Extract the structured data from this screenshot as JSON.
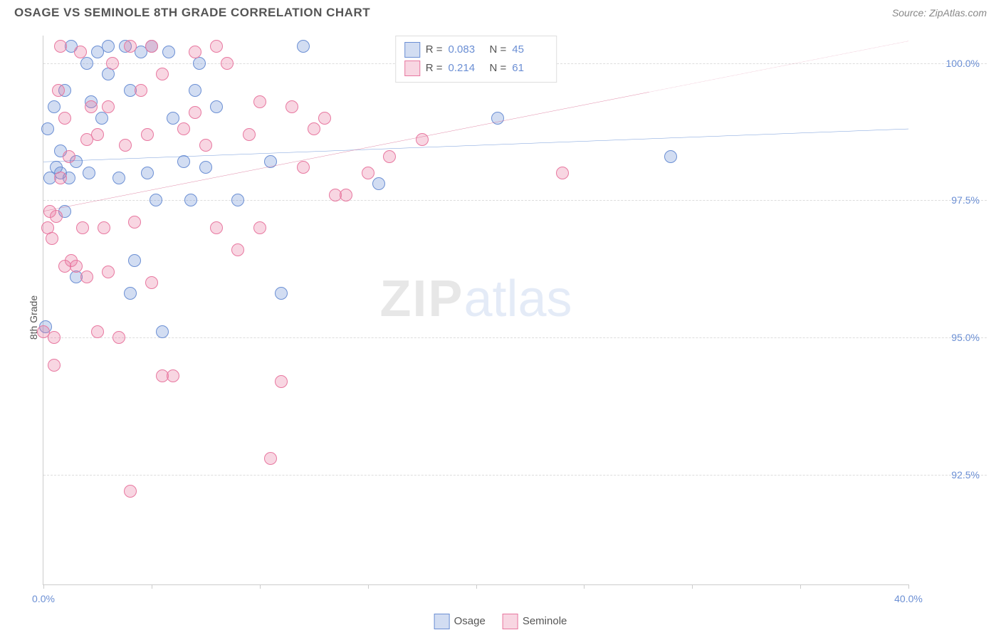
{
  "title": "OSAGE VS SEMINOLE 8TH GRADE CORRELATION CHART",
  "source": "Source: ZipAtlas.com",
  "ylabel": "8th Grade",
  "watermark": {
    "zip": "ZIP",
    "atlas": "atlas"
  },
  "chart": {
    "type": "scatter",
    "background_color": "#ffffff",
    "grid_color": "#dddddd",
    "axis_color": "#cccccc",
    "label_color": "#6b8fd4",
    "title_color": "#555555",
    "title_fontsize": 17,
    "label_fontsize": 14,
    "xlim": [
      0,
      40
    ],
    "ylim": [
      90.5,
      100.5
    ],
    "xticks": [
      0,
      5,
      10,
      15,
      20,
      25,
      30,
      35,
      40
    ],
    "xtick_labels": {
      "0": "0.0%",
      "40": "40.0%"
    },
    "yticks": [
      92.5,
      95.0,
      97.5,
      100.0
    ],
    "ytick_labels": [
      "92.5%",
      "95.0%",
      "97.5%",
      "100.0%"
    ],
    "marker_radius": 9,
    "marker_border_width": 1.5,
    "marker_fill_opacity": 0.35,
    "series": [
      {
        "name": "Osage",
        "color_fill": "rgba(107,143,212,0.30)",
        "color_border": "#6b8fd4",
        "line_color": "#3a6fc9",
        "line_width": 2.5,
        "R": "0.083",
        "N": "45",
        "trend": {
          "x1": 0,
          "y1": 98.2,
          "x2": 40,
          "y2": 98.8,
          "solid_until_x": 40
        },
        "points": [
          [
            0.2,
            98.8
          ],
          [
            0.3,
            97.9
          ],
          [
            0.5,
            99.2
          ],
          [
            0.6,
            98.1
          ],
          [
            0.8,
            98.0
          ],
          [
            0.8,
            98.4
          ],
          [
            1.0,
            97.3
          ],
          [
            1.0,
            99.5
          ],
          [
            1.2,
            97.9
          ],
          [
            1.3,
            100.3
          ],
          [
            1.5,
            98.2
          ],
          [
            1.5,
            96.1
          ],
          [
            2.0,
            100.0
          ],
          [
            2.1,
            98.0
          ],
          [
            2.2,
            99.3
          ],
          [
            2.5,
            100.2
          ],
          [
            2.7,
            99.0
          ],
          [
            3.0,
            99.8
          ],
          [
            3.0,
            100.3
          ],
          [
            3.5,
            97.9
          ],
          [
            3.8,
            100.3
          ],
          [
            4.0,
            99.5
          ],
          [
            4.0,
            95.8
          ],
          [
            4.2,
            96.4
          ],
          [
            4.5,
            100.2
          ],
          [
            4.8,
            98.0
          ],
          [
            5.0,
            100.3
          ],
          [
            5.2,
            97.5
          ],
          [
            5.5,
            95.1
          ],
          [
            5.8,
            100.2
          ],
          [
            6.0,
            99.0
          ],
          [
            6.5,
            98.2
          ],
          [
            6.8,
            97.5
          ],
          [
            7.0,
            99.5
          ],
          [
            7.2,
            100.0
          ],
          [
            7.5,
            98.1
          ],
          [
            8.0,
            99.2
          ],
          [
            9.0,
            97.5
          ],
          [
            10.5,
            98.2
          ],
          [
            11.0,
            95.8
          ],
          [
            12.0,
            100.3
          ],
          [
            15.5,
            97.8
          ],
          [
            21.0,
            99.0
          ],
          [
            29.0,
            98.3
          ],
          [
            0.1,
            95.2
          ]
        ]
      },
      {
        "name": "Seminole",
        "color_fill": "rgba(232,120,160,0.30)",
        "color_border": "#e878a0",
        "line_color": "#d45a85",
        "line_width": 2.5,
        "R": "0.214",
        "N": "61",
        "trend": {
          "x1": 0,
          "y1": 97.3,
          "x2": 40,
          "y2": 100.4,
          "solid_until_x": 28
        },
        "points": [
          [
            0.2,
            97.0
          ],
          [
            0.3,
            97.3
          ],
          [
            0.4,
            96.8
          ],
          [
            0.5,
            95.0
          ],
          [
            0.5,
            94.5
          ],
          [
            0.6,
            97.2
          ],
          [
            0.7,
            99.5
          ],
          [
            0.8,
            100.3
          ],
          [
            0.8,
            97.9
          ],
          [
            1.0,
            99.0
          ],
          [
            1.0,
            96.3
          ],
          [
            1.2,
            98.3
          ],
          [
            1.3,
            96.4
          ],
          [
            1.5,
            96.3
          ],
          [
            1.7,
            100.2
          ],
          [
            1.8,
            97.0
          ],
          [
            2.0,
            98.6
          ],
          [
            2.0,
            96.1
          ],
          [
            2.2,
            99.2
          ],
          [
            2.5,
            98.7
          ],
          [
            2.5,
            95.1
          ],
          [
            2.8,
            97.0
          ],
          [
            3.0,
            96.2
          ],
          [
            3.0,
            99.2
          ],
          [
            3.2,
            100.0
          ],
          [
            3.5,
            95.0
          ],
          [
            3.8,
            98.5
          ],
          [
            4.0,
            100.3
          ],
          [
            4.0,
            92.2
          ],
          [
            4.2,
            97.1
          ],
          [
            4.5,
            99.5
          ],
          [
            4.8,
            98.7
          ],
          [
            5.0,
            100.3
          ],
          [
            5.0,
            96.0
          ],
          [
            5.5,
            94.3
          ],
          [
            5.5,
            99.8
          ],
          [
            6.0,
            94.3
          ],
          [
            6.5,
            98.8
          ],
          [
            7.0,
            99.1
          ],
          [
            7.0,
            100.2
          ],
          [
            7.5,
            98.5
          ],
          [
            8.0,
            97.0
          ],
          [
            8.0,
            100.3
          ],
          [
            8.5,
            100.0
          ],
          [
            9.0,
            96.6
          ],
          [
            9.5,
            98.7
          ],
          [
            10.0,
            97.0
          ],
          [
            10.0,
            99.3
          ],
          [
            10.5,
            92.8
          ],
          [
            11.0,
            94.2
          ],
          [
            11.5,
            99.2
          ],
          [
            12.0,
            98.1
          ],
          [
            12.5,
            98.8
          ],
          [
            13.0,
            99.0
          ],
          [
            13.5,
            97.6
          ],
          [
            14.0,
            97.6
          ],
          [
            15.0,
            98.0
          ],
          [
            16.0,
            98.3
          ],
          [
            17.5,
            98.6
          ],
          [
            24.0,
            98.0
          ],
          [
            0.0,
            95.1
          ]
        ]
      }
    ]
  },
  "legend_bottom": [
    {
      "label": "Osage",
      "fill": "rgba(107,143,212,0.30)",
      "border": "#6b8fd4"
    },
    {
      "label": "Seminole",
      "fill": "rgba(232,120,160,0.30)",
      "border": "#e878a0"
    }
  ]
}
